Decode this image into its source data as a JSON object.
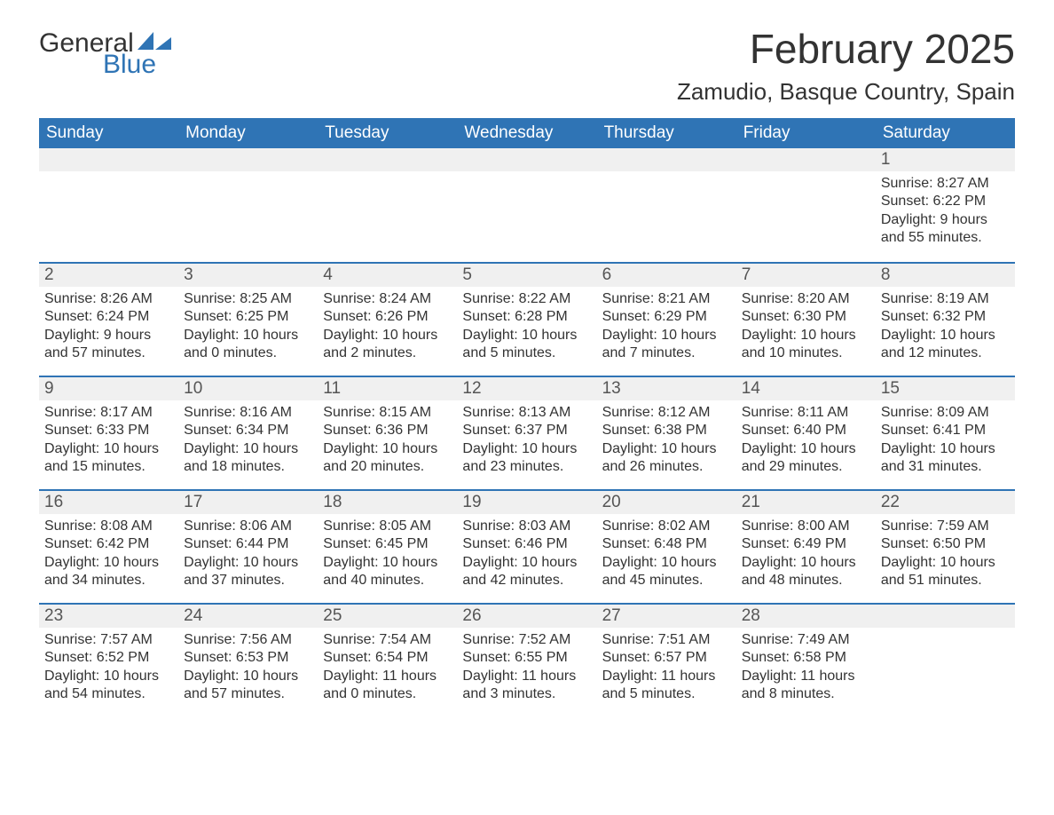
{
  "logo": {
    "text_general": "General",
    "text_blue": "Blue",
    "sail_color": "#2f74b5"
  },
  "title": "February 2025",
  "location": "Zamudio, Basque Country, Spain",
  "colors": {
    "header_bg": "#2f74b5",
    "header_text": "#ffffff",
    "row_bg": "#f0f0f0",
    "row_border": "#2f74b5",
    "text": "#333333"
  },
  "day_headers": [
    "Sunday",
    "Monday",
    "Tuesday",
    "Wednesday",
    "Thursday",
    "Friday",
    "Saturday"
  ],
  "label_sunrise": "Sunrise:",
  "label_sunset": "Sunset:",
  "label_daylight": "Daylight:",
  "weeks": [
    [
      null,
      null,
      null,
      null,
      null,
      null,
      {
        "d": "1",
        "sunrise": "8:27 AM",
        "sunset": "6:22 PM",
        "daylight": "9 hours and 55 minutes."
      }
    ],
    [
      {
        "d": "2",
        "sunrise": "8:26 AM",
        "sunset": "6:24 PM",
        "daylight": "9 hours and 57 minutes."
      },
      {
        "d": "3",
        "sunrise": "8:25 AM",
        "sunset": "6:25 PM",
        "daylight": "10 hours and 0 minutes."
      },
      {
        "d": "4",
        "sunrise": "8:24 AM",
        "sunset": "6:26 PM",
        "daylight": "10 hours and 2 minutes."
      },
      {
        "d": "5",
        "sunrise": "8:22 AM",
        "sunset": "6:28 PM",
        "daylight": "10 hours and 5 minutes."
      },
      {
        "d": "6",
        "sunrise": "8:21 AM",
        "sunset": "6:29 PM",
        "daylight": "10 hours and 7 minutes."
      },
      {
        "d": "7",
        "sunrise": "8:20 AM",
        "sunset": "6:30 PM",
        "daylight": "10 hours and 10 minutes."
      },
      {
        "d": "8",
        "sunrise": "8:19 AM",
        "sunset": "6:32 PM",
        "daylight": "10 hours and 12 minutes."
      }
    ],
    [
      {
        "d": "9",
        "sunrise": "8:17 AM",
        "sunset": "6:33 PM",
        "daylight": "10 hours and 15 minutes."
      },
      {
        "d": "10",
        "sunrise": "8:16 AM",
        "sunset": "6:34 PM",
        "daylight": "10 hours and 18 minutes."
      },
      {
        "d": "11",
        "sunrise": "8:15 AM",
        "sunset": "6:36 PM",
        "daylight": "10 hours and 20 minutes."
      },
      {
        "d": "12",
        "sunrise": "8:13 AM",
        "sunset": "6:37 PM",
        "daylight": "10 hours and 23 minutes."
      },
      {
        "d": "13",
        "sunrise": "8:12 AM",
        "sunset": "6:38 PM",
        "daylight": "10 hours and 26 minutes."
      },
      {
        "d": "14",
        "sunrise": "8:11 AM",
        "sunset": "6:40 PM",
        "daylight": "10 hours and 29 minutes."
      },
      {
        "d": "15",
        "sunrise": "8:09 AM",
        "sunset": "6:41 PM",
        "daylight": "10 hours and 31 minutes."
      }
    ],
    [
      {
        "d": "16",
        "sunrise": "8:08 AM",
        "sunset": "6:42 PM",
        "daylight": "10 hours and 34 minutes."
      },
      {
        "d": "17",
        "sunrise": "8:06 AM",
        "sunset": "6:44 PM",
        "daylight": "10 hours and 37 minutes."
      },
      {
        "d": "18",
        "sunrise": "8:05 AM",
        "sunset": "6:45 PM",
        "daylight": "10 hours and 40 minutes."
      },
      {
        "d": "19",
        "sunrise": "8:03 AM",
        "sunset": "6:46 PM",
        "daylight": "10 hours and 42 minutes."
      },
      {
        "d": "20",
        "sunrise": "8:02 AM",
        "sunset": "6:48 PM",
        "daylight": "10 hours and 45 minutes."
      },
      {
        "d": "21",
        "sunrise": "8:00 AM",
        "sunset": "6:49 PM",
        "daylight": "10 hours and 48 minutes."
      },
      {
        "d": "22",
        "sunrise": "7:59 AM",
        "sunset": "6:50 PM",
        "daylight": "10 hours and 51 minutes."
      }
    ],
    [
      {
        "d": "23",
        "sunrise": "7:57 AM",
        "sunset": "6:52 PM",
        "daylight": "10 hours and 54 minutes."
      },
      {
        "d": "24",
        "sunrise": "7:56 AM",
        "sunset": "6:53 PM",
        "daylight": "10 hours and 57 minutes."
      },
      {
        "d": "25",
        "sunrise": "7:54 AM",
        "sunset": "6:54 PM",
        "daylight": "11 hours and 0 minutes."
      },
      {
        "d": "26",
        "sunrise": "7:52 AM",
        "sunset": "6:55 PM",
        "daylight": "11 hours and 3 minutes."
      },
      {
        "d": "27",
        "sunrise": "7:51 AM",
        "sunset": "6:57 PM",
        "daylight": "11 hours and 5 minutes."
      },
      {
        "d": "28",
        "sunrise": "7:49 AM",
        "sunset": "6:58 PM",
        "daylight": "11 hours and 8 minutes."
      },
      null
    ]
  ]
}
